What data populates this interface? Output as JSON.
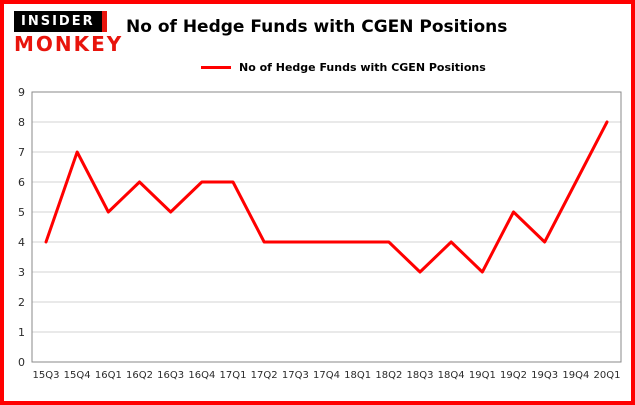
{
  "logo": {
    "line1": "INSIDER",
    "line2": "MONKEY"
  },
  "header": {
    "title": "No of Hedge Funds with CGEN Positions"
  },
  "legend": {
    "label": "No of Hedge Funds with CGEN Positions",
    "color": "#ff0000"
  },
  "chart_data": {
    "type": "line",
    "title": "No of Hedge Funds with CGEN Positions",
    "categories": [
      "15Q3",
      "15Q4",
      "16Q1",
      "16Q2",
      "16Q3",
      "16Q4",
      "17Q1",
      "17Q2",
      "17Q3",
      "17Q4",
      "18Q1",
      "18Q2",
      "18Q3",
      "18Q4",
      "19Q1",
      "19Q2",
      "19Q3",
      "19Q4",
      "20Q1"
    ],
    "values": [
      4,
      7,
      5,
      6,
      5,
      6,
      6,
      4,
      4,
      4,
      4,
      4,
      3,
      4,
      3,
      5,
      4,
      6,
      8
    ],
    "xlabel": "",
    "ylabel": "",
    "ylim": [
      0,
      9
    ],
    "yticks": [
      0,
      1,
      2,
      3,
      4,
      5,
      6,
      7,
      8,
      9
    ],
    "grid": true,
    "legend_position": "top-left",
    "line_color": "#ff0000",
    "line_width": 3
  },
  "colors": {
    "frame_border": "#ff0000",
    "grid": "#d3d3d3",
    "spine": "#8a8a8a",
    "tick_text": "#2b2b2b"
  }
}
